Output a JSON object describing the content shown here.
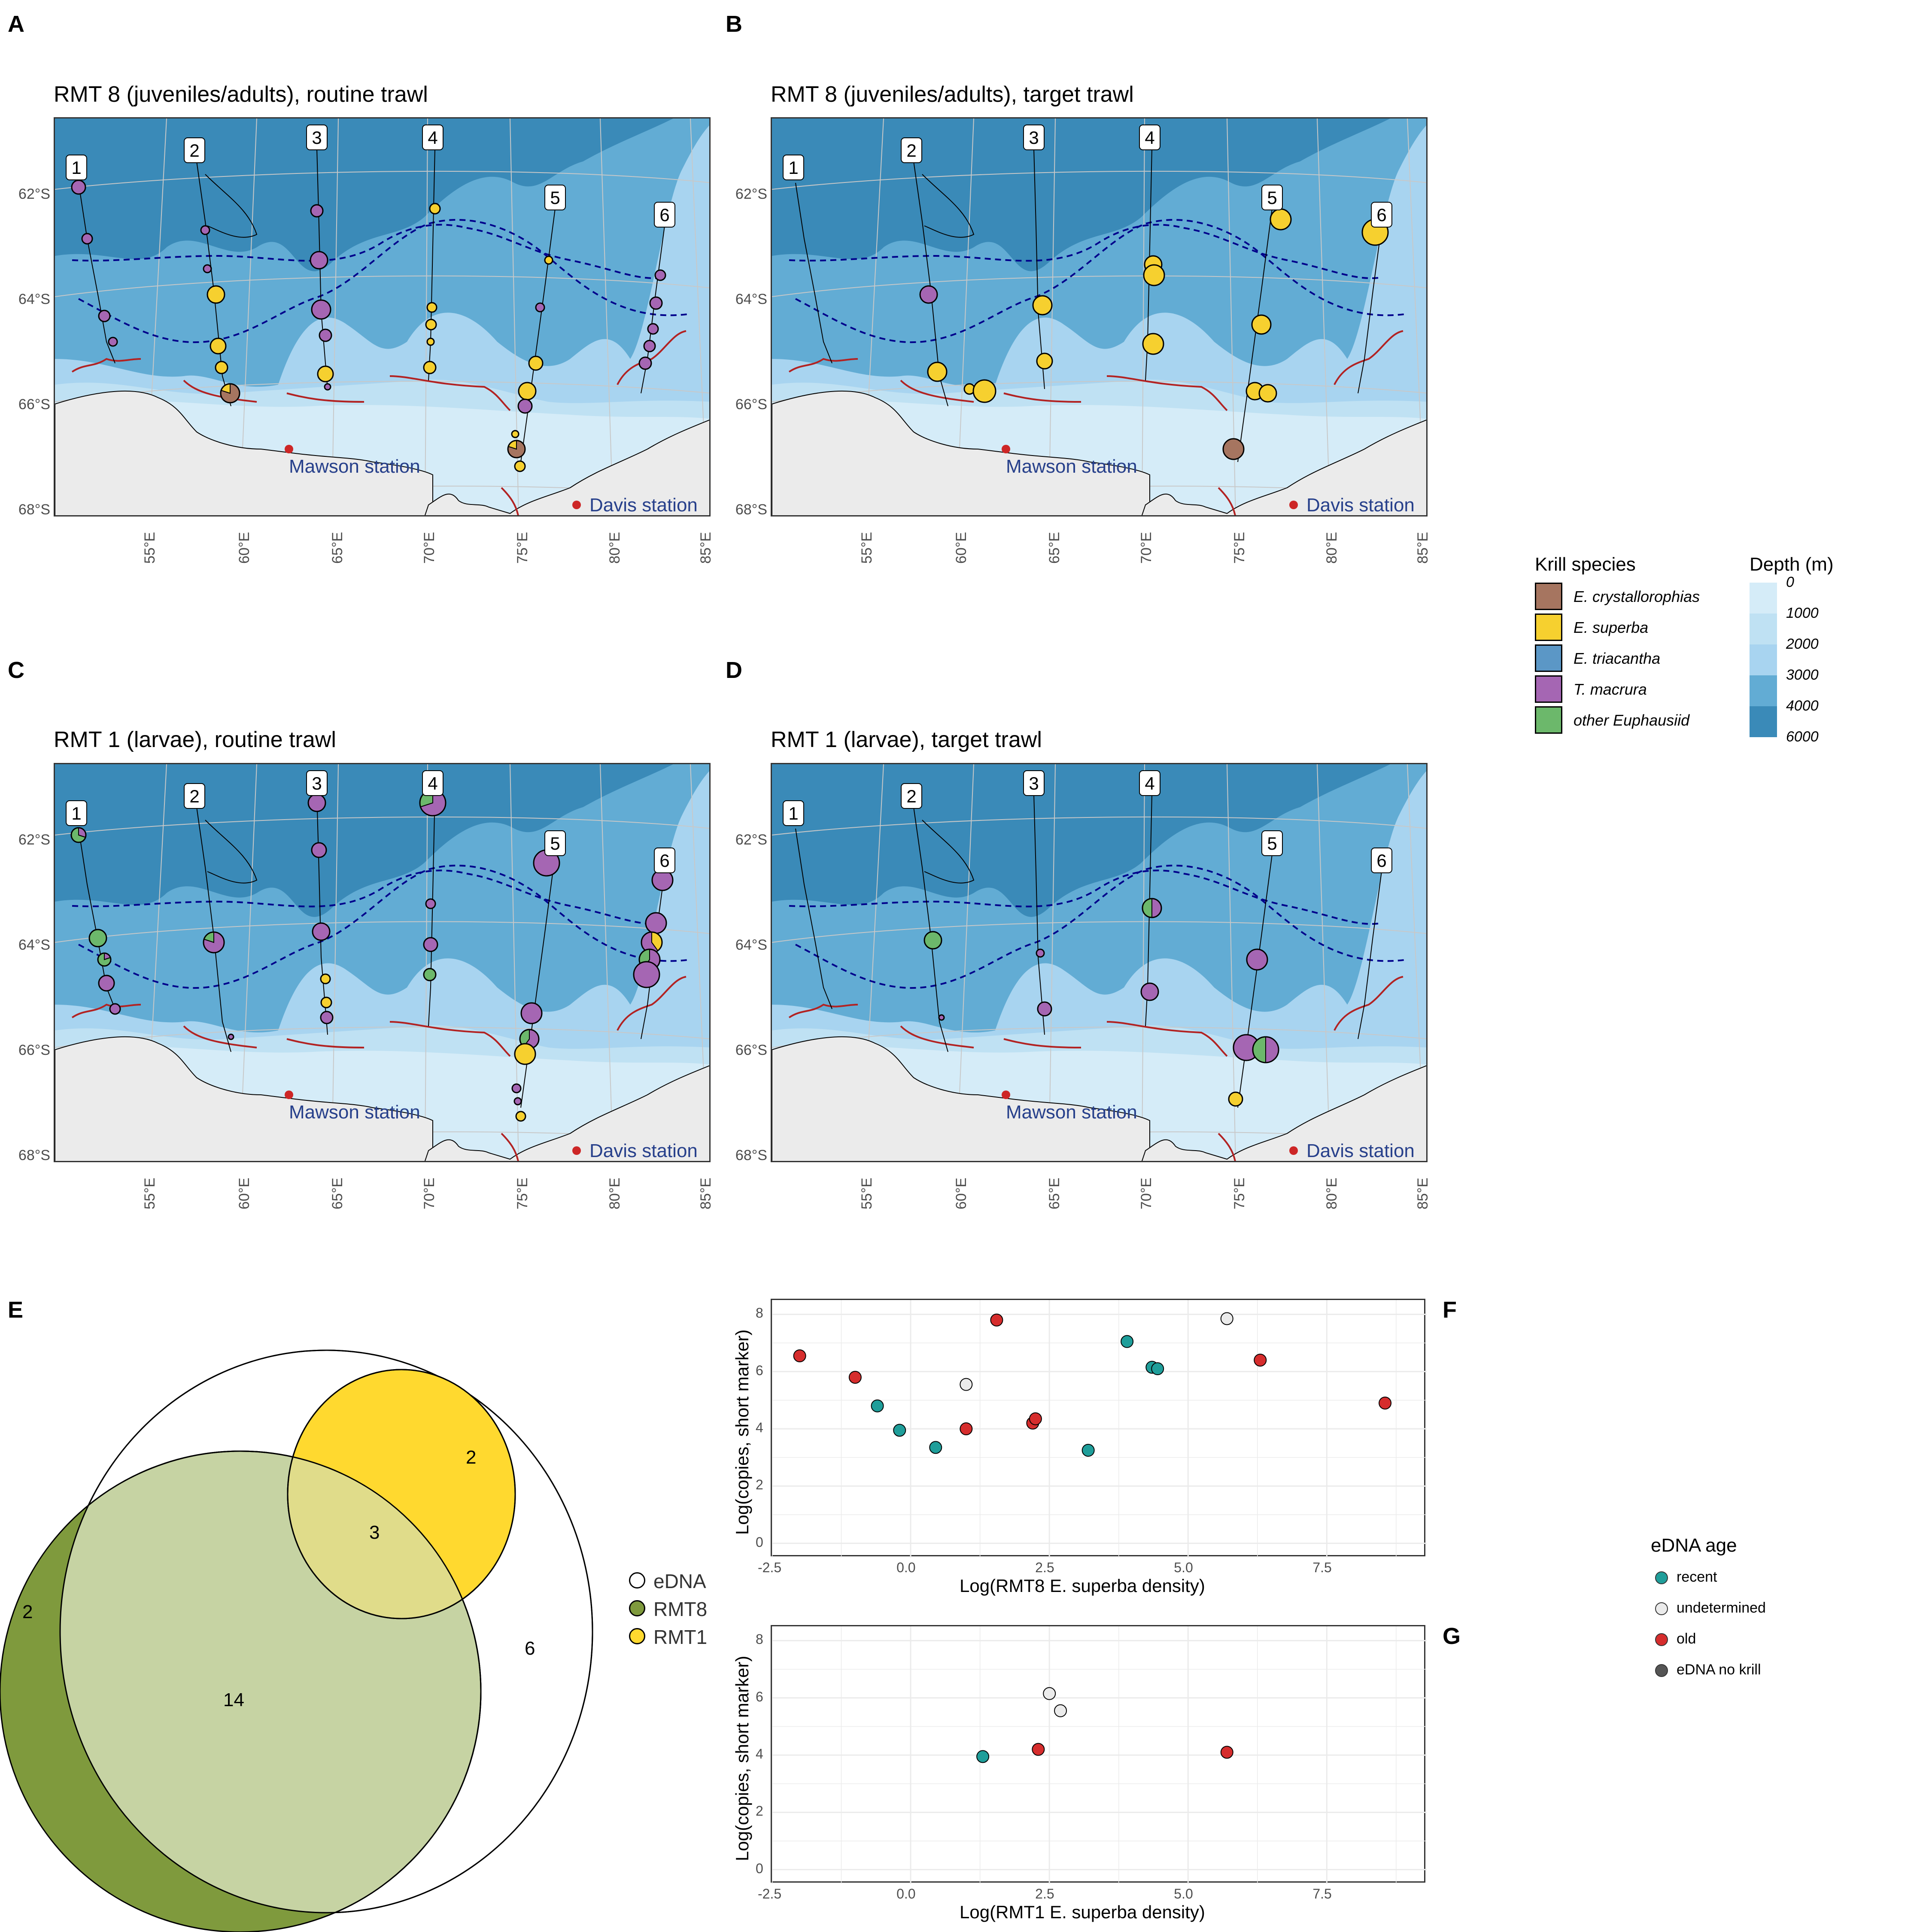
{
  "panels": {
    "A": {
      "label": "A",
      "title": "RMT 8 (juveniles/adults), routine trawl"
    },
    "B": {
      "label": "B",
      "title": "RMT 8 (juveniles/adults), target trawl"
    },
    "C": {
      "label": "C",
      "title": "RMT 1 (larvae), routine trawl"
    },
    "D": {
      "label": "D",
      "title": "RMT 1 (larvae), target trawl"
    },
    "E": {
      "label": "E"
    },
    "F": {
      "label": "F"
    },
    "G": {
      "label": "G"
    }
  },
  "map": {
    "lat_ticks": [
      "62°S",
      "64°S",
      "66°S",
      "68°S"
    ],
    "lon_ticks": [
      "55°E",
      "60°E",
      "65°E",
      "70°E",
      "75°E",
      "80°E",
      "85°E"
    ],
    "transects": [
      "1",
      "2",
      "3",
      "4",
      "5",
      "6"
    ],
    "stations": {
      "mawson": "Mawson station",
      "davis": "Davis station"
    },
    "colors": {
      "land": "#ebebeb",
      "ice_edge": "#b22222",
      "front": "#00008b",
      "station": "#cd2626"
    }
  },
  "krill_legend": {
    "title": "Krill species",
    "items": [
      {
        "name": "E. crystallorophias",
        "color": "#a67560"
      },
      {
        "name": "E. superba",
        "color": "#f6d02f"
      },
      {
        "name": "E. triacantha",
        "color": "#5b97c6"
      },
      {
        "name": "T. macrura",
        "color": "#a566b3"
      },
      {
        "name": "other Euphausiid",
        "color": "#6cb86b"
      }
    ]
  },
  "depth_legend": {
    "title": "Depth (m)",
    "labels": [
      "0",
      "1000",
      "2000",
      "3000",
      "4000",
      "6000"
    ],
    "colors": [
      "#d5ecf8",
      "#bfe1f3",
      "#a8d4f0",
      "#62acd4",
      "#3a8ab8"
    ]
  },
  "venn": {
    "counts": {
      "rmt8_only": "2",
      "rmt1_edna": "2",
      "all_three": "3",
      "edna_only": "6",
      "rmt8_edna": "14"
    },
    "legend": [
      {
        "name": "eDNA",
        "color": "#ffffff"
      },
      {
        "name": "RMT8",
        "color": "#7f9a3d"
      },
      {
        "name": "RMT1",
        "color": "#ffd92f"
      }
    ]
  },
  "chart_data": [
    {
      "type": "scatter",
      "panel": "F",
      "xlabel": "Log(RMT8 E. superba density)",
      "ylabel": "Log(copies, short marker)",
      "xlim": [
        -2.5,
        9.3
      ],
      "ylim": [
        -0.5,
        8.5
      ],
      "x_ticks": [
        "-2.5",
        "0.0",
        "2.5",
        "5.0",
        "7.5"
      ],
      "y_ticks": [
        "0",
        "2",
        "4",
        "6",
        "8"
      ],
      "points": [
        {
          "x": -2.0,
          "y": 6.55,
          "age": "old"
        },
        {
          "x": -1.0,
          "y": 5.8,
          "age": "old"
        },
        {
          "x": -0.6,
          "y": 4.8,
          "age": "recent"
        },
        {
          "x": -0.2,
          "y": 3.95,
          "age": "recent"
        },
        {
          "x": 0.45,
          "y": 3.35,
          "age": "recent"
        },
        {
          "x": 1.0,
          "y": 5.55,
          "age": "undetermined"
        },
        {
          "x": 1.0,
          "y": 4.0,
          "age": "old"
        },
        {
          "x": 1.55,
          "y": 7.8,
          "age": "old"
        },
        {
          "x": 2.2,
          "y": 4.2,
          "age": "old"
        },
        {
          "x": 2.25,
          "y": 4.35,
          "age": "old"
        },
        {
          "x": 3.2,
          "y": 3.25,
          "age": "recent"
        },
        {
          "x": 3.9,
          "y": 7.05,
          "age": "recent"
        },
        {
          "x": 4.35,
          "y": 6.15,
          "age": "recent"
        },
        {
          "x": 4.45,
          "y": 6.1,
          "age": "recent"
        },
        {
          "x": 5.7,
          "y": 7.85,
          "age": "undetermined"
        },
        {
          "x": 6.3,
          "y": 6.4,
          "age": "old"
        },
        {
          "x": 8.55,
          "y": 4.9,
          "age": "old"
        }
      ]
    },
    {
      "type": "scatter",
      "panel": "G",
      "xlabel": "Log(RMT1 E. superba density)",
      "ylabel": "Log(copies, short marker)",
      "xlim": [
        -2.5,
        9.3
      ],
      "ylim": [
        -0.5,
        8.5
      ],
      "x_ticks": [
        "-2.5",
        "0.0",
        "2.5",
        "5.0",
        "7.5"
      ],
      "y_ticks": [
        "0",
        "2",
        "4",
        "6",
        "8"
      ],
      "points": [
        {
          "x": 1.3,
          "y": 3.95,
          "age": "recent"
        },
        {
          "x": 2.3,
          "y": 4.2,
          "age": "old"
        },
        {
          "x": 2.5,
          "y": 6.15,
          "age": "undetermined"
        },
        {
          "x": 2.7,
          "y": 5.55,
          "age": "undetermined"
        },
        {
          "x": 5.7,
          "y": 4.1,
          "age": "old"
        }
      ]
    }
  ],
  "age_legend": {
    "title": "eDNA age",
    "items": [
      {
        "name": "recent",
        "color": "#1f9e9a"
      },
      {
        "name": "undetermined",
        "color": "#ebebeb"
      },
      {
        "name": "old",
        "color": "#d62d2d"
      },
      {
        "name": "eDNA no krill",
        "color": "#555555"
      }
    ]
  }
}
